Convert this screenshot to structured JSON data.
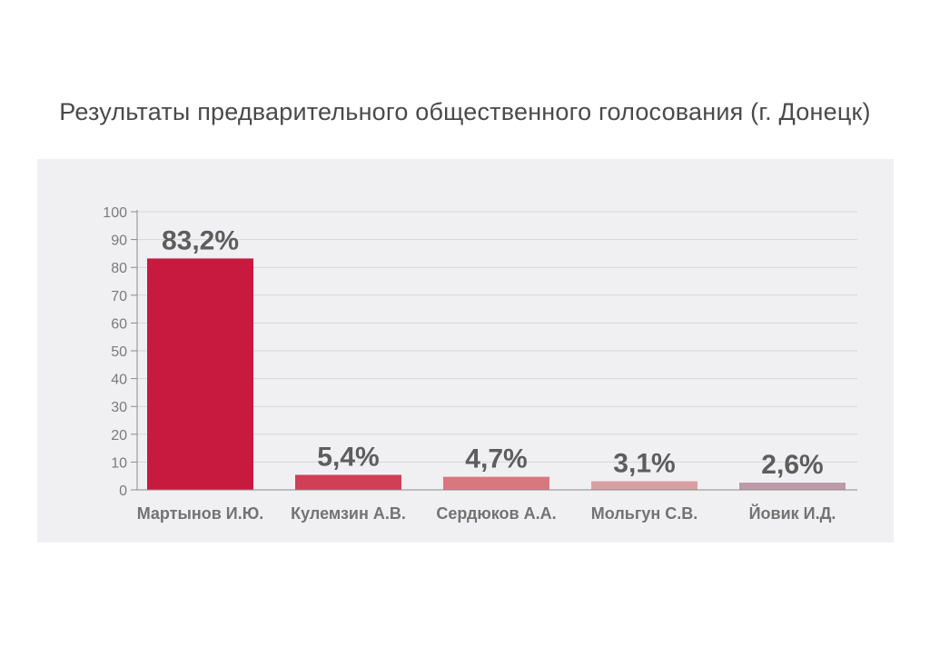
{
  "chart_data": {
    "type": "bar",
    "title": "Результаты предварительного общественного голосования (г. Донецк)",
    "categories": [
      "Мартынов И.Ю.",
      "Кулемзин А.В.",
      "Сердюков А.А.",
      "Мольгун С.В.",
      "Йовик И.Д."
    ],
    "values": [
      83.2,
      5.4,
      4.7,
      3.1,
      2.6
    ],
    "value_labels": [
      "83,2%",
      "5,4%",
      "4,7%",
      "3,1%",
      "2,6%"
    ],
    "bar_colors": [
      "#c8193f",
      "#d03f55",
      "#d9777e",
      "#d8a0a2",
      "#bc9aa6"
    ],
    "ylim": [
      0,
      100
    ],
    "y_ticks": [
      0,
      10,
      20,
      30,
      40,
      50,
      60,
      70,
      80,
      90,
      100
    ],
    "grid": true,
    "xlabel": "",
    "ylabel": ""
  }
}
